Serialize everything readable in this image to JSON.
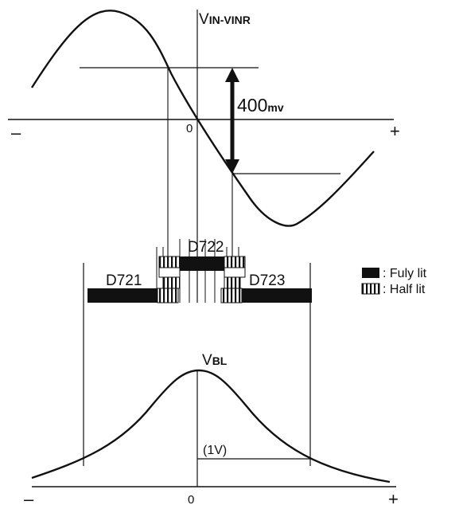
{
  "top_graph": {
    "axis_label": "VIN-VINR",
    "axis_label_parts": {
      "main": "V",
      "sub": "IN-VINR"
    },
    "origin": "0",
    "minus": "–",
    "plus": "+",
    "amplitude_label": "400mv",
    "amplitude_parts": {
      "num": "400",
      "unit": "mv"
    }
  },
  "led_bar": {
    "leds": [
      {
        "id": "D721",
        "label": "D721"
      },
      {
        "id": "D722",
        "label": "D722"
      },
      {
        "id": "D723",
        "label": "D723"
      }
    ]
  },
  "legend": {
    "items": [
      {
        "state": "fully_lit",
        "text": ": Fuly lit",
        "fill": "#000000"
      },
      {
        "state": "half_lit",
        "text": ": Half lit",
        "fill": "striped"
      }
    ]
  },
  "bottom_graph": {
    "axis_label": "VBL",
    "axis_label_parts": {
      "main": "V",
      "sub": "BL"
    },
    "origin": "0",
    "minus": "–",
    "plus": "+",
    "width_label": "(1V)"
  },
  "colors": {
    "ink": "#111111",
    "background": "#ffffff"
  }
}
